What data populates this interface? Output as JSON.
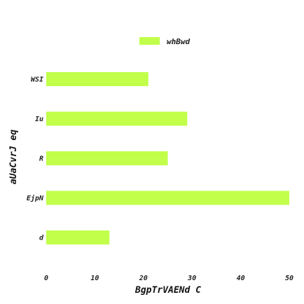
{
  "chart_data": {
    "type": "bar",
    "orientation": "horizontal",
    "categories": [
      "WSI",
      "Iu",
      "R",
      "EjpN",
      "d"
    ],
    "series": [
      {
        "name": "whBwd",
        "values": [
          21,
          29,
          25,
          50,
          13
        ]
      }
    ],
    "xlabel": "BgpTrVAENd  C",
    "ylabel": "aUaCvrJ eq",
    "xlim": [
      0,
      50
    ],
    "xticks": [
      "0",
      "10",
      "20",
      "30",
      "40",
      "50"
    ],
    "grid": false,
    "legend_position": "top-center",
    "colors": {
      "bar": "#c1ff4a",
      "text": "#222222"
    }
  }
}
